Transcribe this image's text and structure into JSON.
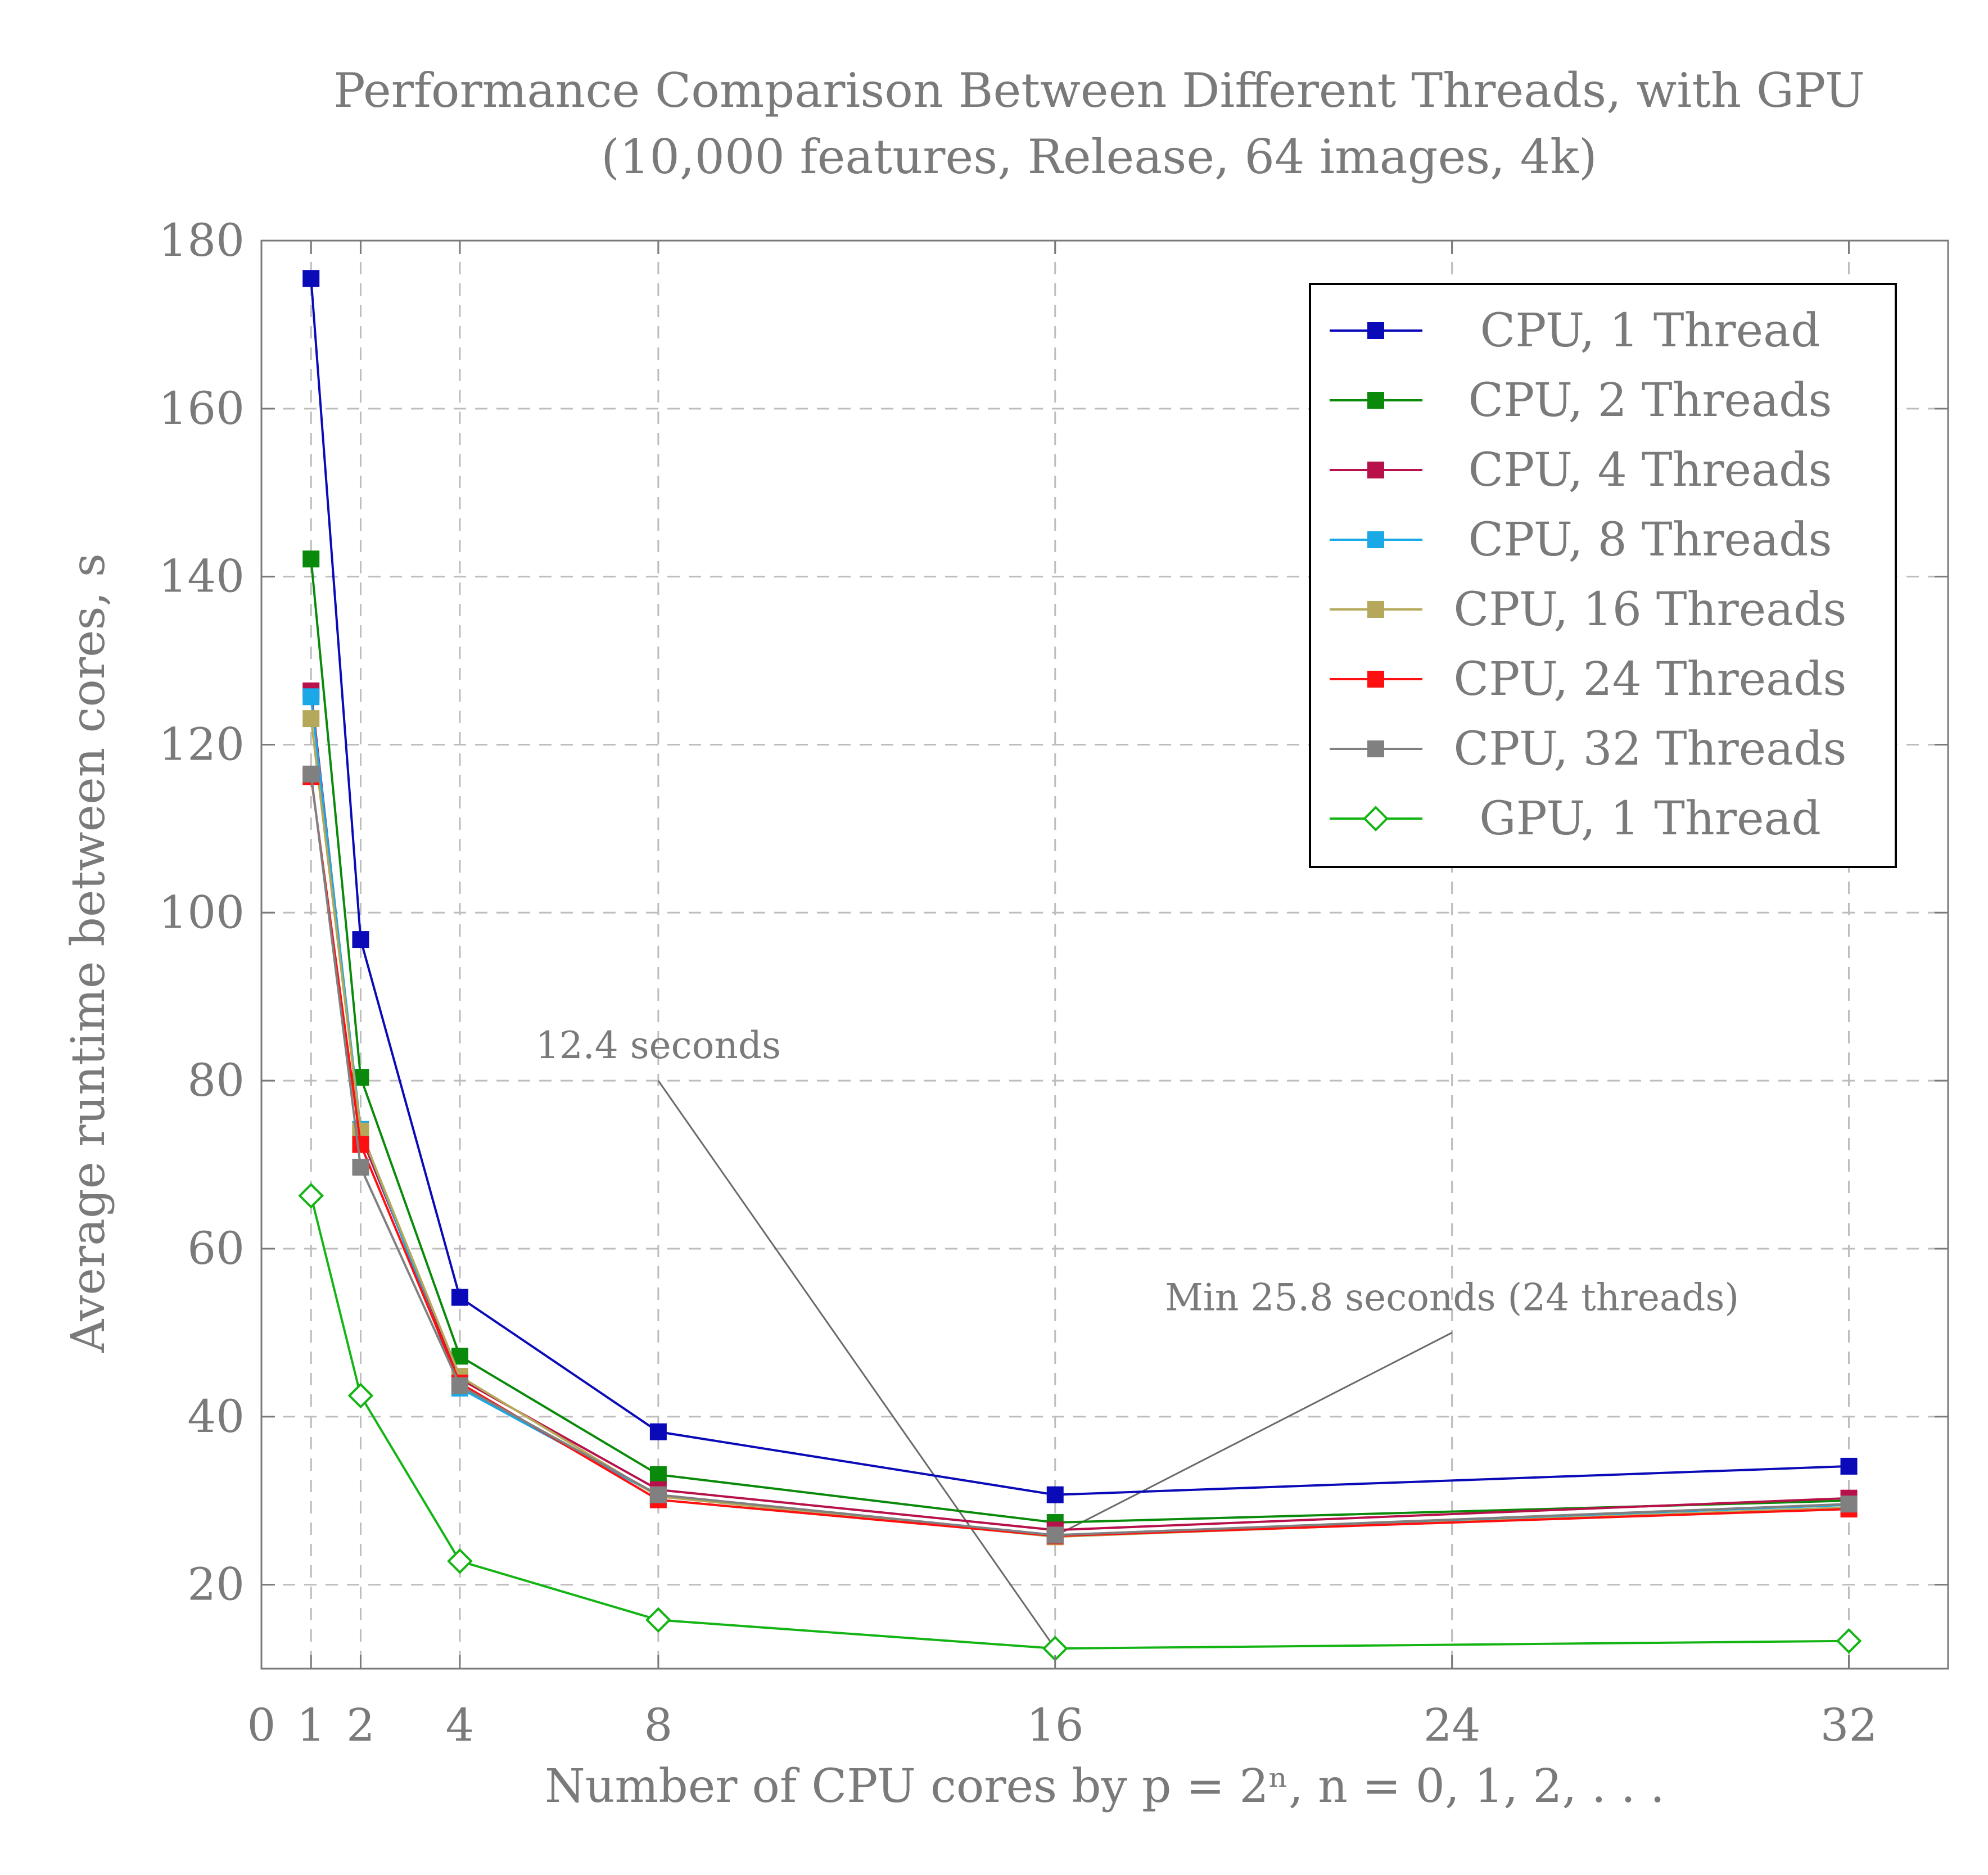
{
  "chart_data": {
    "type": "line",
    "title": "Performance Comparison Between Different Threads, with GPU",
    "subtitle": "(10,000 features, Release, 64 images, 4k)",
    "xlabel": "Number of CPU cores by p = 2ⁿ, n = 0, 1, 2, . . .",
    "ylabel": "Average runtime between cores, s",
    "x": [
      1,
      2,
      4,
      8,
      16,
      32
    ],
    "xlim": [
      0,
      34
    ],
    "ylim": [
      10,
      180
    ],
    "x_ticks": [
      0,
      1,
      2,
      4,
      8,
      16,
      24,
      32
    ],
    "y_ticks": [
      20,
      40,
      60,
      80,
      100,
      120,
      140,
      160,
      180
    ],
    "grid": true,
    "grid_style": "dashed",
    "legend_position": "top-right",
    "series": [
      {
        "name": "CPU, 1 Thread",
        "color": "#0a0ab8",
        "marker": "square",
        "values": [
          175.5,
          96.8,
          54.2,
          38.2,
          30.7,
          34.1
        ]
      },
      {
        "name": "CPU, 2 Threads",
        "color": "#0a8a0a",
        "marker": "square",
        "values": [
          142.1,
          80.4,
          47.2,
          33.1,
          27.4,
          30.0
        ]
      },
      {
        "name": "CPU, 4 Threads",
        "color": "#b8104a",
        "marker": "square",
        "values": [
          126.4,
          73.5,
          44.5,
          31.3,
          26.5,
          30.3
        ]
      },
      {
        "name": "CPU, 8 Threads",
        "color": "#1aa8e6",
        "marker": "square",
        "values": [
          125.7,
          74.2,
          43.4,
          30.6,
          25.9,
          29.5
        ]
      },
      {
        "name": "CPU, 16 Threads",
        "color": "#b5a85a",
        "marker": "square",
        "values": [
          123.1,
          74.0,
          44.8,
          30.5,
          25.7,
          29.2
        ]
      },
      {
        "name": "CPU, 24 Threads",
        "color": "#ff1010",
        "marker": "square",
        "values": [
          116.2,
          72.4,
          44.0,
          30.1,
          25.8,
          29.0
        ]
      },
      {
        "name": "CPU, 32 Threads",
        "color": "#808080",
        "marker": "square",
        "values": [
          116.5,
          69.7,
          43.7,
          30.7,
          25.9,
          29.6
        ]
      },
      {
        "name": "GPU, 1 Thread",
        "color": "#14b414",
        "marker": "diamond",
        "values": [
          66.3,
          42.5,
          22.8,
          15.8,
          12.4,
          13.3
        ]
      }
    ],
    "annotations": [
      {
        "text": "12.4 seconds",
        "x": 16,
        "y": 12.4,
        "label_x": 8,
        "label_y": 80
      },
      {
        "text": "Min 25.8 seconds (24 threads)",
        "x": 16,
        "y": 25.8,
        "label_x": 24,
        "label_y": 50
      }
    ]
  }
}
